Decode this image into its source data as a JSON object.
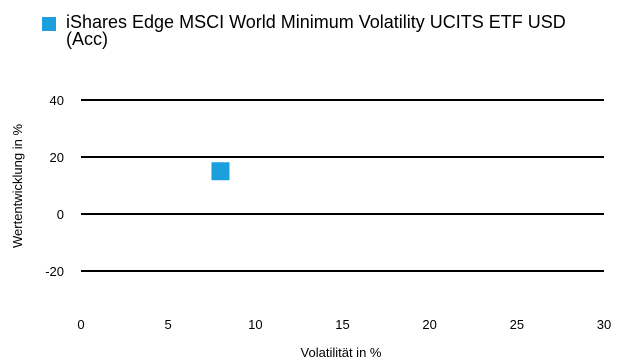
{
  "chart_data": {
    "type": "scatter",
    "xlabel": "Volatilität in %",
    "ylabel": "Wertentwicklung in %",
    "xlim": [
      0,
      30
    ],
    "ylim": [
      -20,
      40
    ],
    "x_ticks": [
      0,
      5,
      10,
      15,
      20,
      25,
      30
    ],
    "y_ticks": [
      40,
      20,
      0,
      -20
    ],
    "grid": "horizontal",
    "legend_position": "top",
    "series": [
      {
        "name": "iShares Edge MSCI World Minimum Volatility UCITS ETF USD (Acc)",
        "color": "#1ba0dd",
        "marker": "square",
        "points": [
          {
            "x": 8,
            "y": 15
          }
        ]
      }
    ]
  }
}
